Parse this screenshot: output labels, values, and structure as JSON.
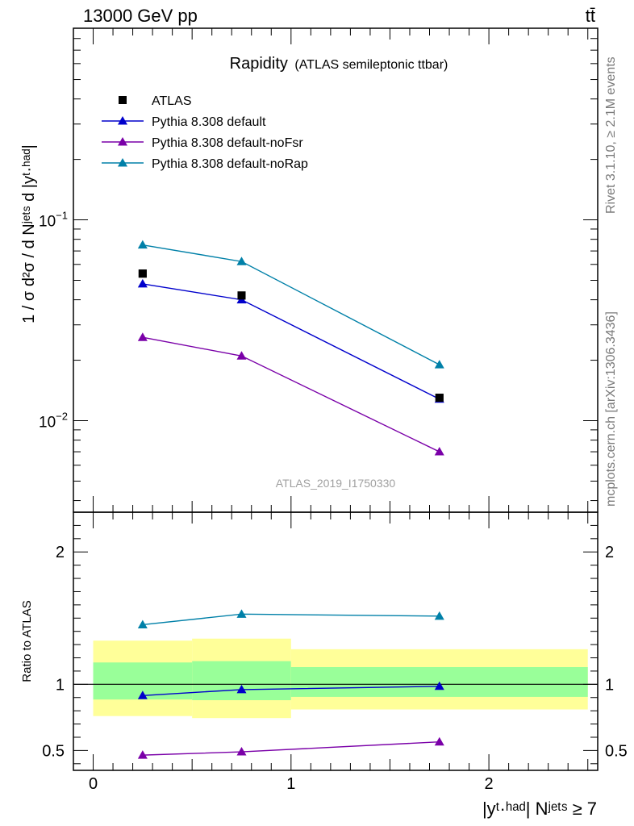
{
  "header": {
    "energy_label": "13000 GeV pp",
    "process_label": "tt̄"
  },
  "side_labels": {
    "rivet": "Rivet 3.1.10, ≥ 2.1M events",
    "mcplots": "mcplots.cern.ch [arXiv:1306.3436]"
  },
  "colors": {
    "atlas": "#000000",
    "default": "#0000cc",
    "noFsr": "#7a00a8",
    "noRap": "#0080a8",
    "band_inner": "#99ff99",
    "band_outer": "#ffff99"
  },
  "chart_data": [
    {
      "type": "line",
      "title": "Rapidity",
      "subtitle": "(ATLAS semileptonic ttbar)",
      "ylabel": "1 / σ d²σ / d Nʲᵉᵗˢ d |yᵗ·ʰᵃᵈ|",
      "yscale": "log",
      "ylim": [
        0.0035,
        0.9
      ],
      "xlim": [
        -0.1,
        2.55
      ],
      "yticks": [
        {
          "value": 0.1,
          "base": "10",
          "exp": "−1"
        },
        {
          "value": 0.01,
          "base": "10",
          "exp": "−2"
        }
      ],
      "watermark": "ATLAS_2019_I1750330",
      "legend": [
        {
          "key": "atlas",
          "label": "ATLAS",
          "marker": "square"
        },
        {
          "key": "default",
          "label": "Pythia 8.308 default",
          "marker": "triangle"
        },
        {
          "key": "noFsr",
          "label": "Pythia 8.308 default-noFsr",
          "marker": "triangle"
        },
        {
          "key": "noRap",
          "label": "Pythia 8.308 default-noRap",
          "marker": "triangle"
        }
      ],
      "x": [
        0.25,
        0.75,
        1.75
      ],
      "series": [
        {
          "key": "atlas",
          "name": "ATLAS",
          "values": [
            0.054,
            0.042,
            0.013
          ]
        },
        {
          "key": "default",
          "name": "Pythia 8.308 default",
          "values": [
            0.048,
            0.04,
            0.0128
          ]
        },
        {
          "key": "noFsr",
          "name": "Pythia 8.308 default-noFsr",
          "values": [
            0.026,
            0.021,
            0.007
          ]
        },
        {
          "key": "noRap",
          "name": "Pythia 8.308 default-noRap",
          "values": [
            0.075,
            0.062,
            0.019
          ]
        }
      ]
    },
    {
      "type": "line",
      "ylabel": "Ratio to ATLAS",
      "xlabel": "|yᵗ·ʰᵃᵈ| Nʲᵉᵗˢ ≥ 7",
      "ylim": [
        0.35,
        2.3
      ],
      "xlim": [
        -0.1,
        2.55
      ],
      "yticks": [
        0.5,
        1,
        2
      ],
      "xticks": [
        0,
        1,
        2
      ],
      "reference_line": 1,
      "bands": [
        {
          "x0": 0.0,
          "x1": 0.5,
          "inner": [
            0.885,
            1.165
          ],
          "outer": [
            0.76,
            1.33
          ]
        },
        {
          "x0": 0.5,
          "x1": 1.0,
          "inner": [
            0.88,
            1.175
          ],
          "outer": [
            0.745,
            1.345
          ]
        },
        {
          "x0": 1.0,
          "x1": 2.5,
          "inner": [
            0.905,
            1.13
          ],
          "outer": [
            0.81,
            1.265
          ]
        }
      ],
      "x": [
        0.25,
        0.75,
        1.75
      ],
      "series": [
        {
          "key": "default",
          "name": "Pythia 8.308 default",
          "values": [
            0.915,
            0.96,
            0.985
          ]
        },
        {
          "key": "noFsr",
          "name": "Pythia 8.308 default-noFsr",
          "values": [
            0.465,
            0.49,
            0.565
          ]
        },
        {
          "key": "noRap",
          "name": "Pythia 8.308 default-noRap",
          "values": [
            1.45,
            1.53,
            1.515
          ]
        }
      ]
    }
  ]
}
